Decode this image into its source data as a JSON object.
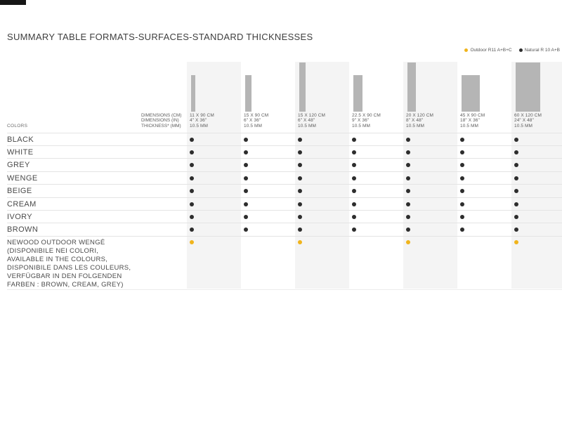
{
  "page": {
    "title": "SUMMARY TABLE FORMATS-SURFACES-STANDARD THICKNESSES"
  },
  "legend": {
    "items": [
      {
        "label": "Outdoor R11 A+B+C",
        "type": "outdoor"
      },
      {
        "label": "Natural R 10 A+B",
        "type": "natural"
      }
    ]
  },
  "palette": {
    "outdoor_dot": "#F0B41C",
    "natural_dot": "#2D2D2D",
    "column_stripe": "#F4F4F4",
    "tile_icon": "#B5B5B5"
  },
  "spec_labels": [
    "DIMENSIONS (CM)",
    "DIMENSIONS (IN)",
    "THICKNESS* (MM)"
  ],
  "colors_header": "COLORS",
  "formats": [
    {
      "cm_label": "11 X 90 CM",
      "in_label": "4\" X 36\"",
      "mm_label": "10.5 MM",
      "cm_w": 11,
      "cm_h": 90,
      "shaded": true
    },
    {
      "cm_label": "15 X 90 CM",
      "in_label": "6\" X 36\"",
      "mm_label": "10.5 MM",
      "cm_w": 15,
      "cm_h": 90,
      "shaded": false
    },
    {
      "cm_label": "15 X 120 CM",
      "in_label": "6\" X 48\"",
      "mm_label": "10.5 MM",
      "cm_w": 15,
      "cm_h": 120,
      "shaded": true
    },
    {
      "cm_label": "22.5 X 90 CM",
      "in_label": "9\" X 36\"",
      "mm_label": "10.5 MM",
      "cm_w": 22.5,
      "cm_h": 90,
      "shaded": false
    },
    {
      "cm_label": "20 X 120 CM",
      "in_label": "8\" X 48\"",
      "mm_label": "10.5 MM",
      "cm_w": 20,
      "cm_h": 120,
      "shaded": true
    },
    {
      "cm_label": "45 X 90 CM",
      "in_label": "18\" X 36\"",
      "mm_label": "10.5 MM",
      "cm_w": 45,
      "cm_h": 90,
      "shaded": false
    },
    {
      "cm_label": "60 X 120 CM",
      "in_label": "24\" X 48\"",
      "mm_label": "10.5 MM",
      "cm_w": 60,
      "cm_h": 120,
      "shaded": true
    }
  ],
  "color_rows": [
    {
      "label": "BLACK",
      "availability": [
        "natural",
        "natural",
        "natural",
        "natural",
        "natural",
        "natural",
        "natural"
      ]
    },
    {
      "label": "WHITE",
      "availability": [
        "natural",
        "natural",
        "natural",
        "natural",
        "natural",
        "natural",
        "natural"
      ]
    },
    {
      "label": "GREY",
      "availability": [
        "natural",
        "natural",
        "natural",
        "natural",
        "natural",
        "natural",
        "natural"
      ]
    },
    {
      "label": "WENGE",
      "availability": [
        "natural",
        "natural",
        "natural",
        "natural",
        "natural",
        "natural",
        "natural"
      ]
    },
    {
      "label": "BEIGE",
      "availability": [
        "natural",
        "natural",
        "natural",
        "natural",
        "natural",
        "natural",
        "natural"
      ]
    },
    {
      "label": "CREAM",
      "availability": [
        "natural",
        "natural",
        "natural",
        "natural",
        "natural",
        "natural",
        "natural"
      ]
    },
    {
      "label": "IVORY",
      "availability": [
        "natural",
        "natural",
        "natural",
        "natural",
        "natural",
        "natural",
        "natural"
      ]
    },
    {
      "label": "BROWN",
      "availability": [
        "natural",
        "natural",
        "natural",
        "natural",
        "natural",
        "natural",
        "natural"
      ]
    }
  ],
  "newood_row": {
    "lines": [
      "NEWOOD OUTDOOR WENGÉ",
      "(DISPONIBILE NEI COLORI,",
      "AVAILABLE IN THE COLOURS,",
      "DISPONIBILE DANS LES COULEURS,",
      "VERFÜGBAR IN DEN FOLGENDEN",
      "FARBEN : BROWN, CREAM, GREY)"
    ],
    "availability": [
      "outdoor",
      null,
      "outdoor",
      null,
      "outdoor",
      null,
      "outdoor"
    ]
  }
}
